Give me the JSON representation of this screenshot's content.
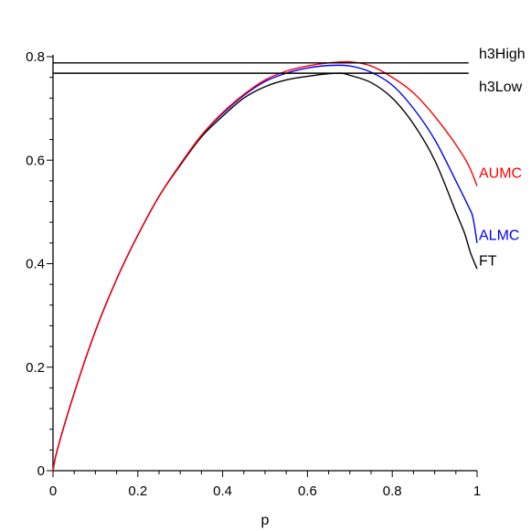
{
  "chart_data": {
    "type": "line",
    "title": "",
    "xlabel": "p",
    "ylabel": "",
    "xlim": [
      0,
      1
    ],
    "ylim": [
      0,
      0.8
    ],
    "x_ticks": [
      "0",
      "0.2",
      "0.4",
      "0.6",
      "0.8",
      "1"
    ],
    "y_ticks": [
      "0",
      "0.2",
      "0.4",
      "0.6",
      "0.8"
    ],
    "grid": false,
    "series": [
      {
        "name": "FT",
        "color": "#000000",
        "points": [
          [
            0,
            0
          ],
          [
            0.01,
            0.04
          ],
          [
            0.05,
            0.15
          ],
          [
            0.1,
            0.27
          ],
          [
            0.15,
            0.37
          ],
          [
            0.2,
            0.455
          ],
          [
            0.25,
            0.53
          ],
          [
            0.3,
            0.59
          ],
          [
            0.35,
            0.645
          ],
          [
            0.4,
            0.685
          ],
          [
            0.45,
            0.72
          ],
          [
            0.5,
            0.742
          ],
          [
            0.55,
            0.755
          ],
          [
            0.6,
            0.762
          ],
          [
            0.65,
            0.767
          ],
          [
            0.68,
            0.768
          ],
          [
            0.7,
            0.764
          ],
          [
            0.75,
            0.75
          ],
          [
            0.8,
            0.72
          ],
          [
            0.85,
            0.67
          ],
          [
            0.9,
            0.6
          ],
          [
            0.95,
            0.5
          ],
          [
            0.97,
            0.46
          ],
          [
            0.985,
            0.42
          ],
          [
            1,
            0.39
          ]
        ]
      },
      {
        "name": "ALMC",
        "color": "#0000ff",
        "points": [
          [
            0,
            0
          ],
          [
            0.01,
            0.04
          ],
          [
            0.05,
            0.15
          ],
          [
            0.1,
            0.27
          ],
          [
            0.15,
            0.37
          ],
          [
            0.2,
            0.455
          ],
          [
            0.25,
            0.53
          ],
          [
            0.3,
            0.592
          ],
          [
            0.35,
            0.648
          ],
          [
            0.4,
            0.69
          ],
          [
            0.45,
            0.725
          ],
          [
            0.5,
            0.752
          ],
          [
            0.55,
            0.768
          ],
          [
            0.6,
            0.778
          ],
          [
            0.65,
            0.783
          ],
          [
            0.7,
            0.782
          ],
          [
            0.75,
            0.77
          ],
          [
            0.8,
            0.745
          ],
          [
            0.85,
            0.7
          ],
          [
            0.9,
            0.64
          ],
          [
            0.95,
            0.56
          ],
          [
            0.98,
            0.51
          ],
          [
            0.99,
            0.49
          ],
          [
            1,
            0.44
          ]
        ]
      },
      {
        "name": "AUMC",
        "color": "#ff0000",
        "points": [
          [
            0,
            0
          ],
          [
            0.01,
            0.04
          ],
          [
            0.05,
            0.15
          ],
          [
            0.1,
            0.27
          ],
          [
            0.15,
            0.37
          ],
          [
            0.2,
            0.455
          ],
          [
            0.25,
            0.53
          ],
          [
            0.3,
            0.592
          ],
          [
            0.35,
            0.648
          ],
          [
            0.4,
            0.692
          ],
          [
            0.45,
            0.727
          ],
          [
            0.5,
            0.755
          ],
          [
            0.55,
            0.772
          ],
          [
            0.6,
            0.782
          ],
          [
            0.65,
            0.788
          ],
          [
            0.7,
            0.79
          ],
          [
            0.75,
            0.782
          ],
          [
            0.8,
            0.76
          ],
          [
            0.85,
            0.73
          ],
          [
            0.9,
            0.685
          ],
          [
            0.95,
            0.63
          ],
          [
            0.98,
            0.59
          ],
          [
            1,
            0.55
          ]
        ]
      }
    ],
    "hlines": [
      {
        "name": "h3High",
        "y": 0.788,
        "xlim": [
          0,
          0.98
        ],
        "color": "#000000"
      },
      {
        "name": "h3Low",
        "y": 0.768,
        "xlim": [
          0,
          0.98
        ],
        "color": "#000000"
      }
    ],
    "labels": {
      "h3High": "h3High",
      "h3Low": "h3Low",
      "AUMC": "AUMC",
      "ALMC": "ALMC",
      "FT": "FT"
    }
  }
}
